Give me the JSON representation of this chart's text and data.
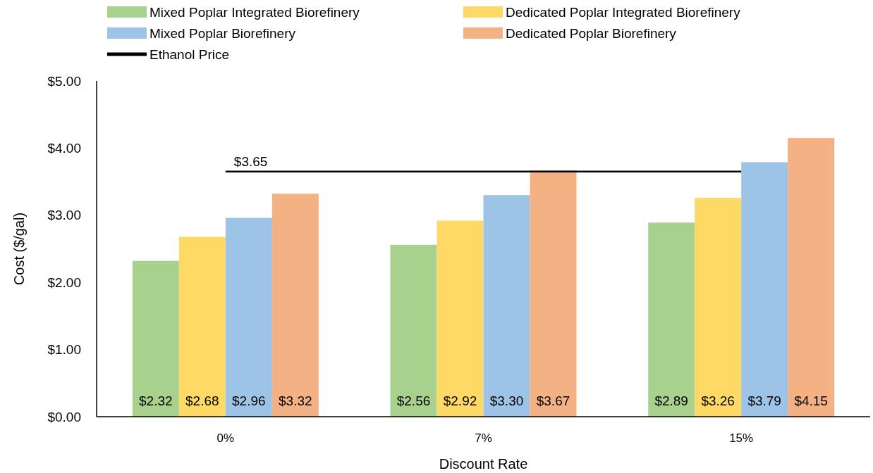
{
  "chart_data": {
    "type": "bar",
    "xlabel": "Discount Rate",
    "ylabel": "Cost ($/gal)",
    "categories": [
      "0%",
      "7%",
      "15%"
    ],
    "series": [
      {
        "name": "Mixed Poplar Integrated Biorefinery",
        "color": "#a9d18e",
        "values": [
          2.32,
          2.56,
          2.89
        ],
        "value_labels": [
          "$2.32",
          "$2.56",
          "$2.89"
        ]
      },
      {
        "name": "Dedicated Poplar Integrated Biorefinery",
        "color": "#ffd966",
        "values": [
          2.68,
          2.92,
          3.26
        ],
        "value_labels": [
          "$2.68",
          "$2.92",
          "$3.26"
        ]
      },
      {
        "name": "Mixed Poplar Biorefinery",
        "color": "#9dc3e6",
        "values": [
          2.96,
          3.3,
          3.79
        ],
        "value_labels": [
          "$2.96",
          "$3.30",
          "$3.79"
        ]
      },
      {
        "name": "Dedicated Poplar Biorefinery",
        "color": "#f4b183",
        "values": [
          3.32,
          3.67,
          4.15
        ],
        "value_labels": [
          "$3.32",
          "$3.67",
          "$4.15"
        ]
      },
      {
        "name": "Ethanol Price",
        "type": "line",
        "color": "#000000",
        "values": [
          3.65,
          3.65,
          3.65
        ]
      }
    ],
    "annotations": [
      {
        "text": "$3.65",
        "x": "0%",
        "y": 3.65
      }
    ],
    "ylim": [
      0,
      5
    ],
    "yticks": [
      {
        "value": 0,
        "label": "$0.00"
      },
      {
        "value": 1,
        "label": "$1.00"
      },
      {
        "value": 2,
        "label": "$2.00"
      },
      {
        "value": 3,
        "label": "$3.00"
      },
      {
        "value": 4,
        "label": "$4.00"
      },
      {
        "value": 5,
        "label": "$5.00"
      }
    ],
    "grid": false,
    "legend": "top",
    "line_style": "solid"
  }
}
